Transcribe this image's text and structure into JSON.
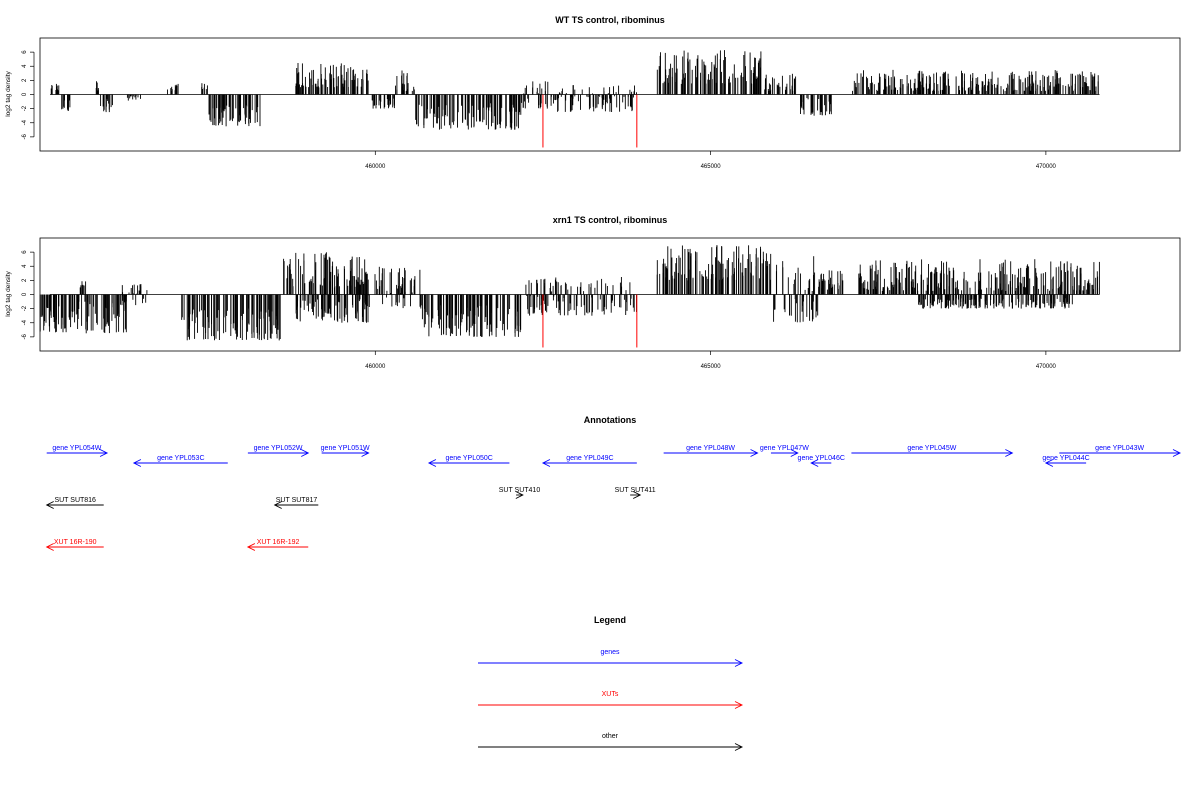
{
  "colors": {
    "gene": "#0000ff",
    "xut": "#ff0000",
    "other": "#000000",
    "bar": "#000000",
    "marker": "#ff0000"
  },
  "chart_data": [
    {
      "type": "bar",
      "title": "WT TS control, ribominus",
      "ylabel": "log2 tag density",
      "xlim": [
        455000,
        472000
      ],
      "ylim": [
        -8,
        8
      ],
      "xticks": [
        460000,
        465000,
        470000
      ],
      "yticks": [
        -6,
        -4,
        -2,
        0,
        2,
        4,
        6
      ],
      "regions": [
        {
          "from": 455150,
          "to": 455300,
          "min": 0.5,
          "max": 1.5
        },
        {
          "from": 455300,
          "to": 455450,
          "min": -2.5,
          "max": -0.5
        },
        {
          "from": 455800,
          "to": 455900,
          "min": 0.5,
          "max": 2
        },
        {
          "from": 455900,
          "to": 456100,
          "min": -2.5,
          "max": -0.5
        },
        {
          "from": 456300,
          "to": 456500,
          "min": -1,
          "max": 0
        },
        {
          "from": 456900,
          "to": 457100,
          "min": 0.5,
          "max": 1.5
        },
        {
          "from": 457400,
          "to": 457500,
          "min": 0.5,
          "max": 1.8
        },
        {
          "from": 457500,
          "to": 458300,
          "min": -4.5,
          "max": -1.5
        },
        {
          "from": 458800,
          "to": 459900,
          "min": 1,
          "max": 4.5
        },
        {
          "from": 459900,
          "to": 460300,
          "min": -2,
          "max": -0.5
        },
        {
          "from": 460300,
          "to": 460600,
          "min": 0.5,
          "max": 3.5
        },
        {
          "from": 460600,
          "to": 462200,
          "min": -5,
          "max": -1
        },
        {
          "from": 462200,
          "to": 462700,
          "min": -2,
          "max": 2.5
        },
        {
          "from": 462700,
          "to": 463900,
          "min": -2.5,
          "max": 1.5
        },
        {
          "from": 464200,
          "to": 465800,
          "min": 1.5,
          "max": 6.5
        },
        {
          "from": 465800,
          "to": 466300,
          "min": 0.5,
          "max": 3
        },
        {
          "from": 466300,
          "to": 466800,
          "min": -3,
          "max": -0.5
        },
        {
          "from": 467100,
          "to": 470800,
          "min": 0.5,
          "max": 3.5
        }
      ],
      "markers": [
        {
          "x": 462500,
          "y": -7.5
        },
        {
          "x": 463900,
          "y": -7.5
        }
      ]
    },
    {
      "type": "bar",
      "title": "xrn1 TS control, ribominus",
      "ylabel": "log2 tag density",
      "xlim": [
        455000,
        472000
      ],
      "ylim": [
        -8,
        8
      ],
      "xticks": [
        460000,
        465000,
        470000
      ],
      "yticks": [
        -6,
        -4,
        -2,
        0,
        2,
        4,
        6
      ],
      "regions": [
        {
          "from": 455000,
          "to": 456300,
          "min": -5.5,
          "max": -1
        },
        {
          "from": 455600,
          "to": 455700,
          "min": 0.5,
          "max": 2
        },
        {
          "from": 456200,
          "to": 456600,
          "min": -1.5,
          "max": 1.5
        },
        {
          "from": 457100,
          "to": 458600,
          "min": -6.5,
          "max": -2
        },
        {
          "from": 458600,
          "to": 459900,
          "min": 1,
          "max": 6
        },
        {
          "from": 458800,
          "to": 459900,
          "min": -4,
          "max": -0.5
        },
        {
          "from": 459900,
          "to": 460700,
          "min": -2,
          "max": 4
        },
        {
          "from": 460700,
          "to": 462200,
          "min": -6,
          "max": -1.5
        },
        {
          "from": 462200,
          "to": 463900,
          "min": -3,
          "max": 2.5
        },
        {
          "from": 464200,
          "to": 465900,
          "min": 2,
          "max": 7
        },
        {
          "from": 465900,
          "to": 466600,
          "min": -4,
          "max": 5.5
        },
        {
          "from": 466600,
          "to": 467000,
          "min": 0.5,
          "max": 3.5
        },
        {
          "from": 467200,
          "to": 470800,
          "min": 0.5,
          "max": 5
        },
        {
          "from": 468100,
          "to": 470400,
          "min": -2,
          "max": -0.5
        }
      ],
      "markers": [
        {
          "x": 462500,
          "y": -7.5
        },
        {
          "x": 463900,
          "y": -7.5
        }
      ]
    }
  ],
  "annotations": {
    "title": "Annotations",
    "items": [
      {
        "label": "gene YPL054W",
        "type": "gene",
        "start": 455100,
        "end": 456000,
        "dir": "right",
        "row": 0
      },
      {
        "label": "gene YPL053C",
        "type": "gene",
        "start": 456400,
        "end": 457800,
        "dir": "left",
        "row": 1
      },
      {
        "label": "gene YPL052W",
        "type": "gene",
        "start": 458100,
        "end": 459000,
        "dir": "right",
        "row": 0
      },
      {
        "label": "gene YPL051W",
        "type": "gene",
        "start": 459200,
        "end": 459900,
        "dir": "right",
        "row": 0
      },
      {
        "label": "gene YPL050C",
        "type": "gene",
        "start": 460800,
        "end": 462000,
        "dir": "left",
        "row": 1
      },
      {
        "label": "gene YPL049C",
        "type": "gene",
        "start": 462500,
        "end": 463900,
        "dir": "left",
        "row": 1
      },
      {
        "label": "gene YPL048W",
        "type": "gene",
        "start": 464300,
        "end": 465700,
        "dir": "right",
        "row": 0
      },
      {
        "label": "gene YPL047W",
        "type": "gene",
        "start": 465900,
        "end": 466300,
        "dir": "right",
        "row": 0
      },
      {
        "label": "gene YPL046C",
        "type": "gene",
        "start": 466500,
        "end": 466800,
        "dir": "left",
        "row": 1
      },
      {
        "label": "gene YPL045W",
        "type": "gene",
        "start": 467100,
        "end": 469500,
        "dir": "right",
        "row": 0
      },
      {
        "label": "gene YPL044C",
        "type": "gene",
        "start": 470000,
        "end": 470600,
        "dir": "left",
        "row": 1
      },
      {
        "label": "gene YPL043W",
        "type": "gene",
        "start": 470200,
        "end": 472000,
        "dir": "right",
        "row": 0
      },
      {
        "label": "SUT SUT816",
        "type": "other",
        "start": 455100,
        "end": 455950,
        "dir": "left",
        "row": 2
      },
      {
        "label": "SUT SUT817",
        "type": "other",
        "start": 458500,
        "end": 459150,
        "dir": "left",
        "row": 2
      },
      {
        "label": "SUT SUT410",
        "type": "other",
        "start": 462100,
        "end": 462200,
        "dir": "right",
        "row": 3
      },
      {
        "label": "SUT SUT411",
        "type": "other",
        "start": 463800,
        "end": 463950,
        "dir": "right",
        "row": 3
      },
      {
        "label": "XUT 16R-190",
        "type": "xut",
        "start": 455100,
        "end": 455950,
        "dir": "left",
        "row": 4
      },
      {
        "label": "XUT 16R-192",
        "type": "xut",
        "start": 458100,
        "end": 459000,
        "dir": "left",
        "row": 4
      }
    ]
  },
  "legend": {
    "title": "Legend",
    "items": [
      {
        "label": "genes",
        "type": "gene"
      },
      {
        "label": "XUTs",
        "type": "xut"
      },
      {
        "label": "other",
        "type": "other"
      }
    ]
  }
}
